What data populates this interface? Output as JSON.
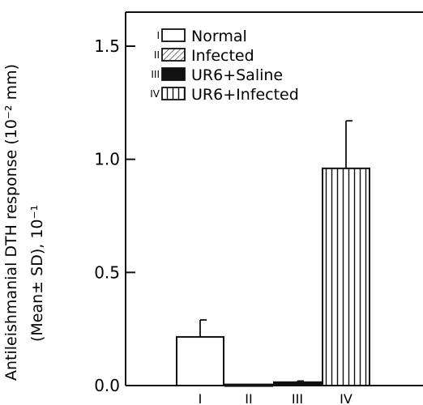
{
  "chart_data": {
    "type": "bar",
    "title": "",
    "xlabel": "",
    "ylabel": "Antileishmanial DTH response (10⁻² mm)",
    "ylabel_line2": "(Mean± SD), 10⁻¹",
    "categories": [
      "I",
      "II",
      "III",
      "IV"
    ],
    "values": [
      0.215,
      0.005,
      0.015,
      0.96
    ],
    "errors": [
      0.075,
      0,
      0.005,
      0.21
    ],
    "ylim": [
      0,
      1.6
    ],
    "yticks": [
      "0.0",
      "0.5",
      "1.0",
      "1.5"
    ],
    "grid": false,
    "legend_position": "top-left",
    "legend": [
      {
        "roman": "I",
        "label": "Normal",
        "pattern": "empty"
      },
      {
        "roman": "II",
        "label": "Infected",
        "pattern": "diagonal"
      },
      {
        "roman": "III",
        "label": "UR6+Saline",
        "pattern": "solid"
      },
      {
        "roman": "IV",
        "label": "UR6+Infected",
        "pattern": "vertical"
      }
    ]
  }
}
